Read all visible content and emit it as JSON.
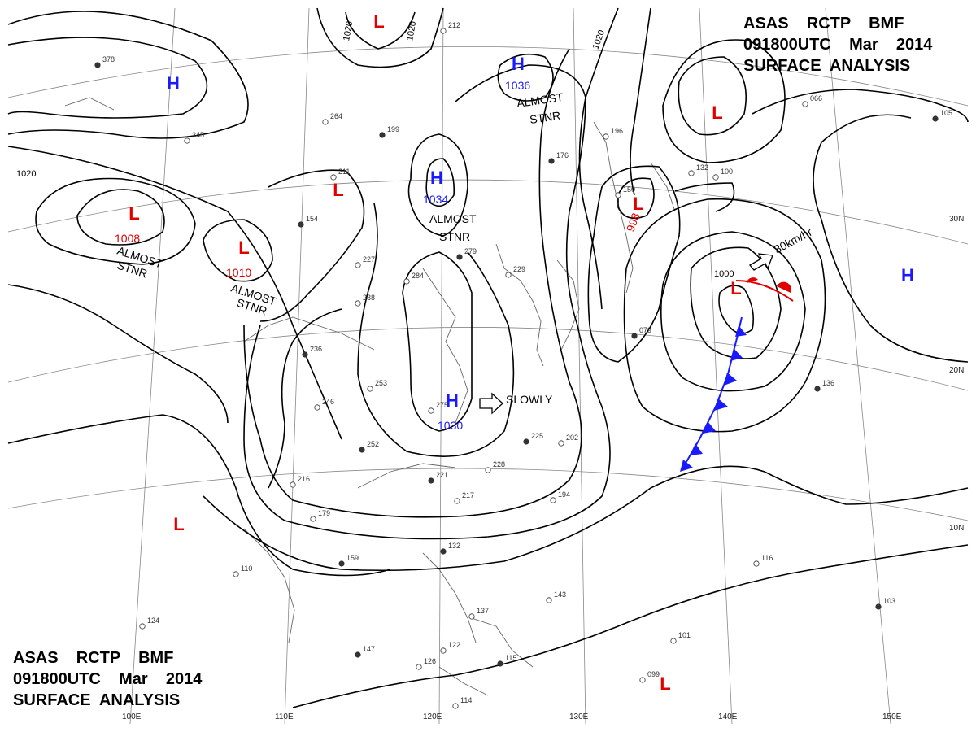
{
  "header": {
    "line1": "ASAS    RCTP    BMF",
    "line2": "091800UTC    Mar    2014",
    "line3": "SURFACE  ANALYSIS"
  },
  "footer": {
    "line1": "ASAS    RCTP    BMF",
    "line2": "091800UTC    Mar    2014",
    "line3": "SURFACE  ANALYSIS"
  },
  "colors": {
    "high": "#1a1aff",
    "low": "#e00000",
    "isobar": "#000000",
    "coast": "#555555",
    "grid": "#888888"
  },
  "grid_labels": {
    "longitudes": [
      "100E",
      "110E",
      "120E",
      "130E",
      "140E",
      "150E"
    ],
    "latitudes": [
      "30N",
      "20N",
      "10N"
    ]
  },
  "isobar_labels": [
    "1020",
    "1020",
    "1020",
    "1020",
    "1000"
  ],
  "pressure_systems": [
    {
      "type": "H",
      "value": ""
    },
    {
      "type": "H",
      "value": "1036"
    },
    {
      "type": "H",
      "value": "1034"
    },
    {
      "type": "H",
      "value": "1030"
    },
    {
      "type": "H",
      "value": ""
    },
    {
      "type": "L",
      "value": "1008"
    },
    {
      "type": "L",
      "value": "1010"
    },
    {
      "type": "L",
      "value": ""
    },
    {
      "type": "L",
      "value": ""
    },
    {
      "type": "L",
      "value": ""
    },
    {
      "type": "L",
      "value": ""
    },
    {
      "type": "L",
      "value": "998"
    },
    {
      "type": "L",
      "value": ""
    },
    {
      "type": "L",
      "value": ""
    }
  ],
  "annotations": {
    "almost_stnr_1_a": "ALMOST",
    "almost_stnr_1_b": "STNR",
    "almost_stnr_2_a": "ALMOST",
    "almost_stnr_2_b": "STNR",
    "almost_stnr_3_a": "ALMOST",
    "almost_stnr_3_b": "STNR",
    "almost_stnr_4_a": "ALMOST",
    "almost_stnr_4_b": "STNR",
    "slowly": "SLOWLY",
    "speed": "30km/hr"
  },
  "stations": [
    "378",
    "345",
    "264",
    "199",
    "212",
    "211",
    "154",
    "227",
    "238",
    "236",
    "253",
    "246",
    "252",
    "216",
    "179",
    "159",
    "110",
    "124",
    "147",
    "126",
    "114",
    "132",
    "137",
    "143",
    "115",
    "122",
    "284",
    "279",
    "229",
    "275",
    "221",
    "217",
    "228",
    "225",
    "202",
    "194",
    "176",
    "196",
    "150",
    "079",
    "132",
    "100",
    "136",
    "101",
    "099",
    "103",
    "116",
    "066",
    "105"
  ]
}
